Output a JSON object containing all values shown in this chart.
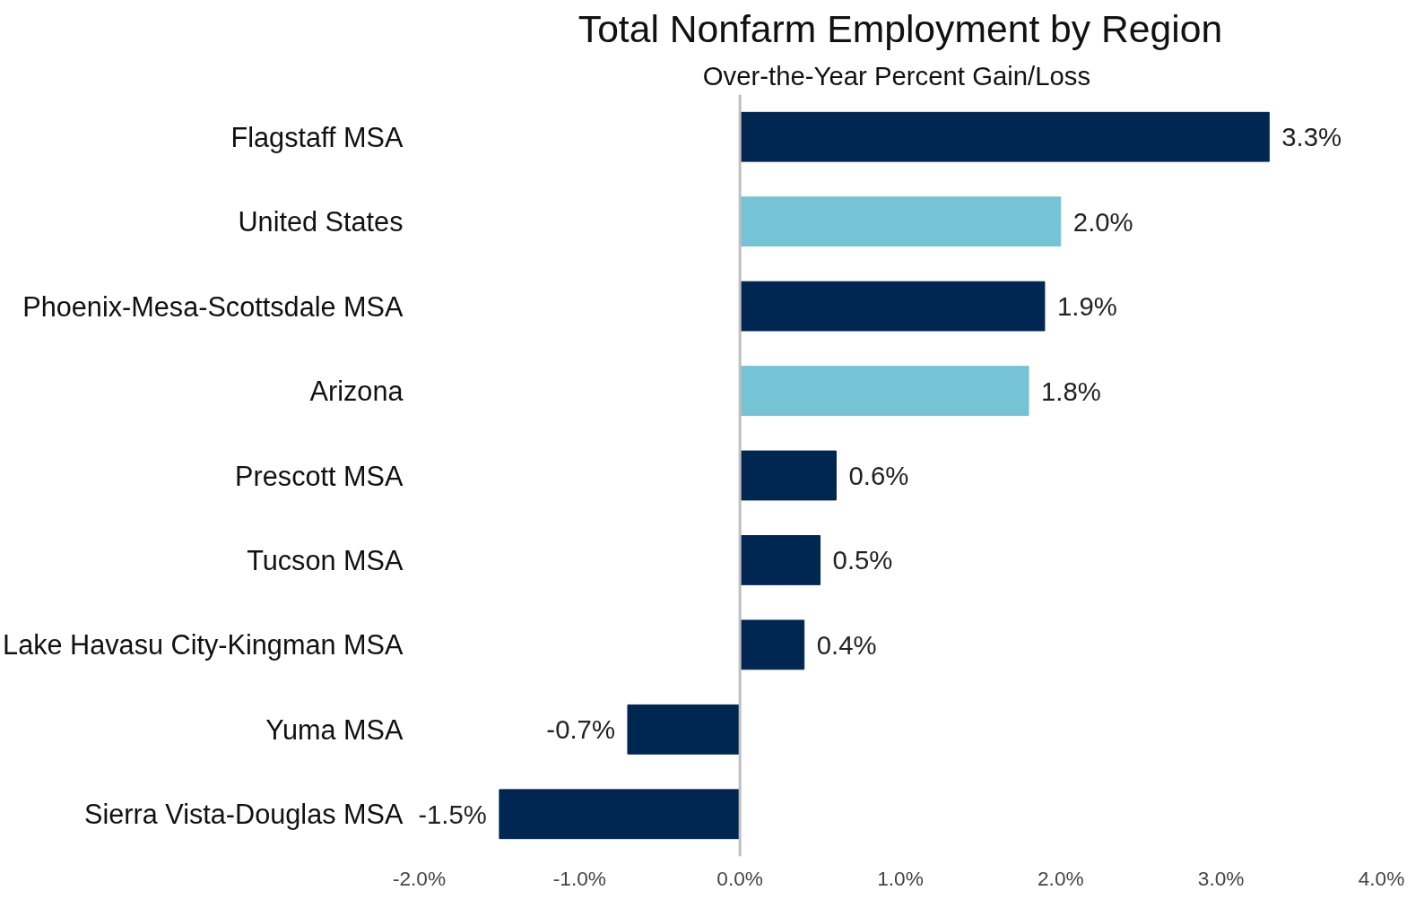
{
  "chart_data": {
    "type": "bar",
    "orientation": "horizontal",
    "title": "Total Nonfarm Employment by Region",
    "subtitle": "Over-the-Year  Percent Gain/Loss",
    "categories": [
      "Flagstaff MSA",
      "United States",
      "Phoenix-Mesa-Scottsdale MSA",
      "Arizona",
      "Prescott MSA",
      "Tucson MSA",
      "Lake Havasu City-Kingman MSA",
      "Yuma MSA",
      "Sierra Vista-Douglas MSA"
    ],
    "values": [
      3.3,
      2.0,
      1.9,
      1.8,
      0.6,
      0.5,
      0.4,
      -0.7,
      -1.5
    ],
    "value_labels": [
      "3.3%",
      "2.0%",
      "1.9%",
      "1.8%",
      "0.6%",
      "0.5%",
      "0.4%",
      "-0.7%",
      "-1.5%"
    ],
    "colors": [
      "#002652",
      "#77c3d6",
      "#002652",
      "#77c3d6",
      "#002652",
      "#002652",
      "#002652",
      "#002652",
      "#002652"
    ],
    "xlim": [
      -2.0,
      4.0
    ],
    "xticks": [
      {
        "value": -2.0,
        "label": "-2.0%"
      },
      {
        "value": -1.0,
        "label": "-1.0%"
      },
      {
        "value": 0.0,
        "label": "0.0%"
      },
      {
        "value": 1.0,
        "label": "1.0%"
      },
      {
        "value": 2.0,
        "label": "2.0%"
      },
      {
        "value": 3.0,
        "label": "3.0%"
      },
      {
        "value": 4.0,
        "label": "4.0%"
      }
    ],
    "ref_lines": [
      {
        "axis": "x",
        "value": 0,
        "color": "#bfbfbf"
      }
    ],
    "grid": false
  }
}
